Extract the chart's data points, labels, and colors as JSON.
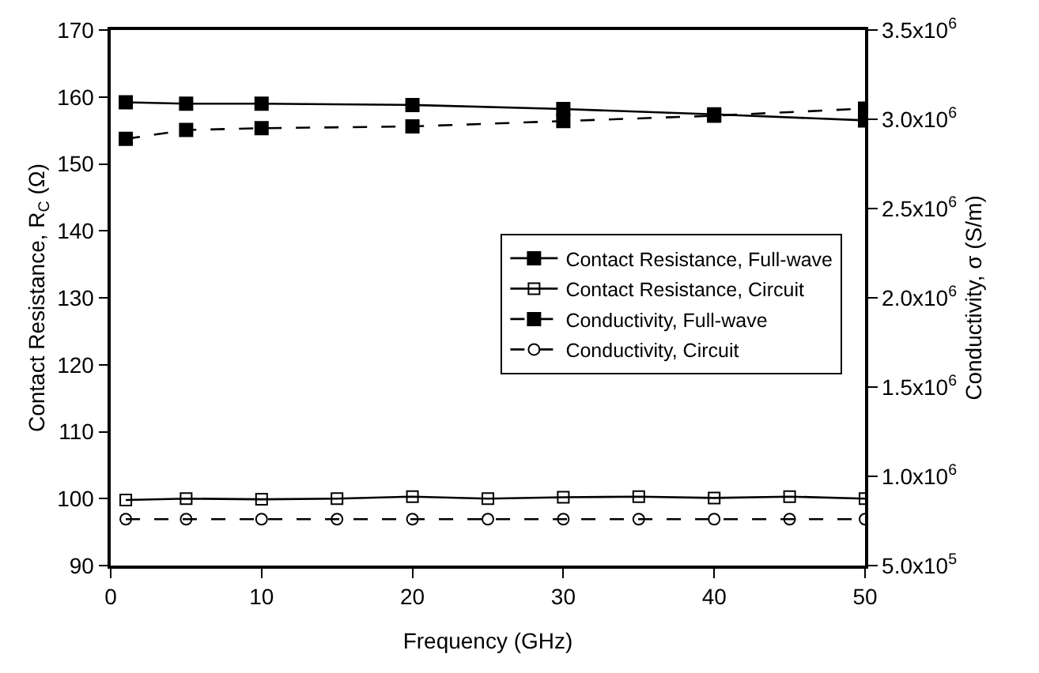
{
  "chart_data": {
    "type": "line",
    "xlabel": "Frequency (GHz)",
    "ylabel": "Contact Resistance, R$_{C}$ (Ω)",
    "y2label": "Conductivity, σ (S/m)",
    "xlim": [
      0,
      50
    ],
    "xticks": [
      0,
      10,
      20,
      30,
      40,
      50
    ],
    "ylim": [
      90,
      170
    ],
    "yticks": [
      90,
      100,
      110,
      120,
      130,
      140,
      150,
      160,
      170
    ],
    "y2lim": [
      500000,
      3500000
    ],
    "y2ticks": [
      {
        "value": 500000,
        "label": "5.0x10$^{5}$"
      },
      {
        "value": 1000000,
        "label": "1.0x10$^{6}$"
      },
      {
        "value": 1500000,
        "label": "1.5x10$^{6}$"
      },
      {
        "value": 2000000,
        "label": "2.0x10$^{6}$"
      },
      {
        "value": 2500000,
        "label": "2.5x10$^{6}$"
      },
      {
        "value": 3000000,
        "label": "3.0x10$^{6}$"
      },
      {
        "value": 3500000,
        "label": "3.5x10$^{6}$"
      }
    ],
    "grid": false,
    "legend": "right",
    "series": [
      {
        "name": "Contact Resistance, Full-wave",
        "color": "#000000",
        "marker": "square",
        "line_style": "solid",
        "x": [
          1,
          5,
          10,
          20,
          30,
          40,
          50
        ],
        "values": [
          159.2,
          159.0,
          159.0,
          158.8,
          158.2,
          157.4,
          156.5
        ]
      },
      {
        "name": "Contact Resistance, Circuit",
        "color": "#000000",
        "marker": "square",
        "line_style": "solid",
        "x": [
          1,
          5,
          10,
          15,
          20,
          25,
          30,
          35,
          40,
          45,
          50
        ],
        "values": [
          99.8,
          100.0,
          99.9,
          100.0,
          100.3,
          100.0,
          100.2,
          100.3,
          100.1,
          100.3,
          100.0
        ]
      },
      {
        "name": "Conductivity, Full-wave",
        "color": "#000000",
        "marker": "square",
        "line_style": "dashed",
        "axis": "y2",
        "x": [
          1,
          5,
          10,
          20,
          30,
          40,
          50
        ],
        "values": [
          2890000,
          2940000,
          2950000,
          2960000,
          2990000,
          3020000,
          3060000
        ]
      },
      {
        "name": "Conductivity, Circuit",
        "color": "#000000",
        "marker": "circle",
        "line_style": "dashed",
        "axis": "y2",
        "x": [
          1,
          5,
          10,
          15,
          20,
          25,
          30,
          35,
          40,
          45,
          50
        ],
        "values": [
          760000,
          760000,
          760000,
          760000,
          760000,
          760000,
          760000,
          760000,
          760000,
          760000,
          760000
        ]
      }
    ]
  }
}
